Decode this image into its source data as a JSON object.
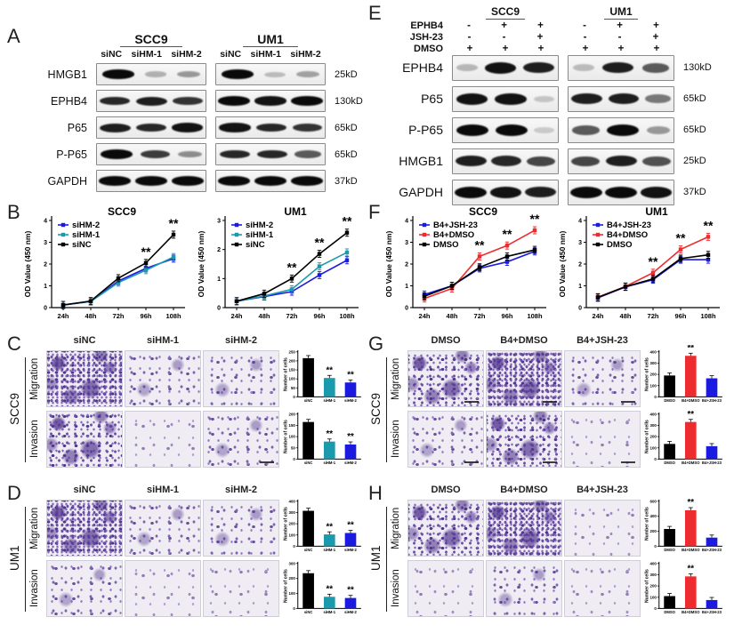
{
  "sig_marker": "**",
  "colors": {
    "blue": "#1a1ae0",
    "teal": "#1b9aad",
    "red": "#ee2b2e",
    "black": "#000000",
    "stain_purple": "#6a4ea3"
  },
  "panels": {
    "A": {
      "letter": "A",
      "groups": [
        "SCC9",
        "UM1"
      ],
      "lanes": [
        "siNC",
        "siHM-1",
        "siHM-2",
        "siNC",
        "siHM-1",
        "siHM-2"
      ],
      "rows": [
        {
          "label": "HMGB1",
          "kd": "25kD",
          "g1": [
            1,
            0.18,
            0.3
          ],
          "g2": [
            1,
            0.12,
            0.25
          ]
        },
        {
          "label": "EPHB4",
          "kd": "130kD",
          "g1": [
            0.85,
            0.9,
            0.8
          ],
          "g2": [
            1,
            0.95,
            1
          ]
        },
        {
          "label": "P65",
          "kd": "65kD",
          "g1": [
            0.9,
            0.85,
            0.95
          ],
          "g2": [
            0.95,
            0.85,
            0.8
          ]
        },
        {
          "label": "P-P65",
          "kd": "65kD",
          "g1": [
            1,
            0.75,
            0.35
          ],
          "g2": [
            0.85,
            0.85,
            0.6
          ]
        },
        {
          "label": "GAPDH",
          "kd": "37kD",
          "g1": [
            1,
            1,
            1
          ],
          "g2": [
            1,
            1,
            1
          ]
        }
      ]
    },
    "E": {
      "letter": "E",
      "groups": [
        "SCC9",
        "UM1"
      ],
      "treatments": [
        {
          "label": "EPHB4",
          "g1": [
            "-",
            "+",
            "+"
          ],
          "g2": [
            "-",
            "+",
            "+"
          ]
        },
        {
          "label": "JSH-23",
          "g1": [
            "-",
            "-",
            "+"
          ],
          "g2": [
            "-",
            "-",
            "+"
          ]
        },
        {
          "label": "DMSO",
          "g1": [
            "+",
            "+",
            "+"
          ],
          "g2": [
            "+",
            "+",
            "+"
          ]
        }
      ],
      "rows": [
        {
          "label": "EPHB4",
          "kd": "130kD",
          "g1": [
            0.15,
            0.95,
            0.9
          ],
          "g2": [
            0.12,
            0.9,
            0.6
          ]
        },
        {
          "label": "P65",
          "kd": "65kD",
          "g1": [
            0.95,
            0.95,
            0.08
          ],
          "g2": [
            0.9,
            0.9,
            0.45
          ]
        },
        {
          "label": "P-P65",
          "kd": "65kD",
          "g1": [
            1,
            1,
            0.06
          ],
          "g2": [
            0.6,
            1,
            0.3
          ]
        },
        {
          "label": "HMGB1",
          "kd": "25kD",
          "g1": [
            0.9,
            0.85,
            0.7
          ],
          "g2": [
            0.7,
            0.9,
            0.65
          ]
        },
        {
          "label": "GAPDH",
          "kd": "37kD",
          "g1": [
            1,
            0.95,
            0.9
          ],
          "g2": [
            1,
            1,
            0.95
          ]
        }
      ]
    },
    "B": {
      "letter": "B"
    },
    "F": {
      "letter": "F"
    },
    "C": {
      "letter": "C",
      "cell_line": "SCC9",
      "columns": [
        "siNC",
        "siHM-1",
        "siHM-2"
      ],
      "rows": [
        {
          "label": "Migration",
          "chart": "C_mig",
          "images": [
            {
              "density": "vhigh"
            },
            {
              "density": "med"
            },
            {
              "density": "med"
            }
          ]
        },
        {
          "label": "Invasion",
          "chart": "C_inv",
          "images": [
            {
              "density": "high"
            },
            {
              "density": "low"
            },
            {
              "density": "med",
              "scalebar": true
            }
          ]
        }
      ]
    },
    "D": {
      "letter": "D",
      "cell_line": "UM1",
      "columns": [
        "siNC",
        "siHM-1",
        "siHM-2"
      ],
      "rows": [
        {
          "label": "Migration",
          "chart": "D_mig",
          "images": [
            {
              "density": "vhigh"
            },
            {
              "density": "med"
            },
            {
              "density": "med"
            }
          ]
        },
        {
          "label": "Invasion",
          "chart": "D_inv",
          "images": [
            {
              "density": "med"
            },
            {
              "density": "low"
            },
            {
              "density": "low"
            }
          ]
        }
      ]
    },
    "G": {
      "letter": "G",
      "cell_line": "SCC9",
      "columns": [
        "DMSO",
        "B4+DMSO",
        "B4+JSH-23"
      ],
      "rows": [
        {
          "label": "Migration",
          "chart": "G_mig",
          "images": [
            {
              "density": "high",
              "scalebar": true
            },
            {
              "density": "vhigh",
              "scalebar": true
            },
            {
              "density": "med",
              "scalebar": true
            }
          ]
        },
        {
          "label": "Invasion",
          "chart": "G_inv",
          "images": [
            {
              "density": "med",
              "scalebar": true
            },
            {
              "density": "high",
              "scalebar": true
            },
            {
              "density": "low",
              "scalebar": true
            }
          ]
        }
      ]
    },
    "H": {
      "letter": "H",
      "cell_line": "UM1",
      "columns": [
        "DMSO",
        "B4+DMSO",
        "B4+JSH-23"
      ],
      "rows": [
        {
          "label": "Migration",
          "chart": "H_mig",
          "images": [
            {
              "density": "high"
            },
            {
              "density": "vhigh"
            },
            {
              "density": "low"
            }
          ]
        },
        {
          "label": "Invasion",
          "chart": "H_inv",
          "images": [
            {
              "density": "low"
            },
            {
              "density": "med"
            },
            {
              "density": "low"
            }
          ]
        }
      ]
    }
  },
  "chart_data": [
    {
      "id": "B_SCC9",
      "type": "line",
      "title": "SCC9",
      "x": [
        "24h",
        "48h",
        "72h",
        "96h",
        "108h"
      ],
      "ylabel": "OD Value (450 nm)",
      "ylim": [
        0,
        4
      ],
      "yticks": [
        0,
        1,
        2,
        3,
        4
      ],
      "series": [
        {
          "name": "siHM-2",
          "color": "#1a1ae0",
          "values": [
            0.12,
            0.28,
            1.22,
            1.8,
            2.25
          ]
        },
        {
          "name": "siHM-1",
          "color": "#1b9aad",
          "values": [
            0.12,
            0.28,
            1.15,
            1.72,
            2.32
          ]
        },
        {
          "name": "siNC",
          "color": "#000000",
          "values": [
            0.12,
            0.3,
            1.35,
            2.05,
            3.35
          ]
        }
      ],
      "sig": [
        3,
        4
      ]
    },
    {
      "id": "B_UM1",
      "type": "line",
      "title": "UM1",
      "x": [
        "24h",
        "48h",
        "72h",
        "96h",
        "108h"
      ],
      "ylabel": "OD Value (450 nm)",
      "ylim": [
        0,
        3
      ],
      "yticks": [
        0,
        1,
        2,
        3
      ],
      "series": [
        {
          "name": "siHM-2",
          "color": "#1a1ae0",
          "values": [
            0.22,
            0.38,
            0.55,
            1.12,
            1.63
          ]
        },
        {
          "name": "siHM-1",
          "color": "#1b9aad",
          "values": [
            0.22,
            0.4,
            0.63,
            1.42,
            1.9
          ]
        },
        {
          "name": "siNC",
          "color": "#000000",
          "values": [
            0.22,
            0.48,
            1.0,
            1.85,
            2.58
          ]
        }
      ],
      "sig": [
        2,
        3,
        4
      ]
    },
    {
      "id": "F_SCC9",
      "type": "line",
      "title": "SCC9",
      "x": [
        "24h",
        "48h",
        "72h",
        "96h",
        "108h"
      ],
      "ylabel": "OD Value (450 nm)",
      "ylim": [
        0,
        4
      ],
      "yticks": [
        0,
        1,
        2,
        3,
        4
      ],
      "series": [
        {
          "name": "B4+JSH-23",
          "color": "#1a1ae0",
          "values": [
            0.6,
            1.0,
            1.8,
            2.1,
            2.58
          ]
        },
        {
          "name": "B4+DMSO",
          "color": "#ee2b2e",
          "values": [
            0.42,
            0.88,
            2.35,
            2.85,
            3.55
          ]
        },
        {
          "name": "DMSO",
          "color": "#000000",
          "values": [
            0.52,
            1.0,
            1.85,
            2.35,
            2.65
          ]
        }
      ],
      "sig": [
        2,
        3,
        4
      ]
    },
    {
      "id": "F_UM1",
      "type": "line",
      "title": "UM1",
      "x": [
        "24h",
        "48h",
        "72h",
        "96h",
        "108h"
      ],
      "ylabel": "OD Value (450 nm)",
      "ylim": [
        0,
        4
      ],
      "yticks": [
        0,
        1,
        2,
        3,
        4
      ],
      "series": [
        {
          "name": "B4+JSH-23",
          "color": "#1a1ae0",
          "values": [
            0.45,
            0.95,
            1.28,
            2.2,
            2.2
          ]
        },
        {
          "name": "B4+DMSO",
          "color": "#ee2b2e",
          "values": [
            0.48,
            0.97,
            1.6,
            2.67,
            3.25
          ]
        },
        {
          "name": "DMSO",
          "color": "#000000",
          "values": [
            0.47,
            0.96,
            1.32,
            2.25,
            2.42
          ]
        }
      ],
      "sig": [
        2,
        3,
        4
      ]
    },
    {
      "id": "C_mig",
      "type": "bar",
      "ylabel": "Number of cells",
      "categories": [
        "siNC",
        "siHM-1",
        "siHM-2"
      ],
      "values": [
        215,
        105,
        80
      ],
      "colors": [
        "#000000",
        "#1b9aad",
        "#1a1ae0"
      ],
      "ylim": [
        0,
        250
      ],
      "yticks": [
        0,
        50,
        100,
        150,
        200,
        250
      ],
      "sig": [
        1,
        2
      ]
    },
    {
      "id": "C_inv",
      "type": "bar",
      "ylabel": "Number of cells",
      "categories": [
        "siNC",
        "siHM-1",
        "siHM-2"
      ],
      "values": [
        165,
        78,
        65
      ],
      "colors": [
        "#000000",
        "#1b9aad",
        "#1a1ae0"
      ],
      "ylim": [
        0,
        200
      ],
      "yticks": [
        0,
        50,
        100,
        150,
        200
      ],
      "sig": [
        1,
        2
      ]
    },
    {
      "id": "D_mig",
      "type": "bar",
      "ylabel": "Number of cells",
      "categories": [
        "siNC",
        "siHM-1",
        "siHM-2"
      ],
      "values": [
        315,
        105,
        118
      ],
      "colors": [
        "#000000",
        "#1b9aad",
        "#1a1ae0"
      ],
      "ylim": [
        0,
        400
      ],
      "yticks": [
        0,
        100,
        200,
        300,
        400
      ],
      "sig": [
        1,
        2
      ]
    },
    {
      "id": "D_inv",
      "type": "bar",
      "ylabel": "Number of cells",
      "categories": [
        "siNC",
        "siHM-1",
        "siHM-2"
      ],
      "values": [
        235,
        78,
        70
      ],
      "colors": [
        "#000000",
        "#1b9aad",
        "#1a1ae0"
      ],
      "ylim": [
        0,
        300
      ],
      "yticks": [
        0,
        100,
        200,
        300
      ],
      "sig": [
        1,
        2
      ]
    },
    {
      "id": "G_mig",
      "type": "bar",
      "ylabel": "Number of cells",
      "categories": [
        "DMSO",
        "B4+DMSO",
        "B4+JSH-23"
      ],
      "values": [
        190,
        365,
        165
      ],
      "colors": [
        "#000000",
        "#ee2b2e",
        "#1a1ae0"
      ],
      "ylim": [
        0,
        400
      ],
      "yticks": [
        0,
        100,
        200,
        300,
        400
      ],
      "sig": [
        1
      ]
    },
    {
      "id": "G_inv",
      "type": "bar",
      "ylabel": "Number of cells",
      "categories": [
        "DMSO",
        "B4+DMSO",
        "B4+JSH-23"
      ],
      "values": [
        135,
        330,
        115
      ],
      "colors": [
        "#000000",
        "#ee2b2e",
        "#1a1ae0"
      ],
      "ylim": [
        0,
        400
      ],
      "yticks": [
        0,
        100,
        200,
        300,
        400
      ],
      "sig": [
        1
      ]
    },
    {
      "id": "H_mig",
      "type": "bar",
      "ylabel": "Number of cells",
      "categories": [
        "DMSO",
        "B4+DMSO",
        "B4+JSH-23"
      ],
      "values": [
        230,
        480,
        115
      ],
      "colors": [
        "#000000",
        "#ee2b2e",
        "#1a1ae0"
      ],
      "ylim": [
        0,
        600
      ],
      "yticks": [
        0,
        200,
        400,
        600
      ],
      "sig": [
        1
      ]
    },
    {
      "id": "H_inv",
      "type": "bar",
      "ylabel": "Number of cells",
      "categories": [
        "DMSO",
        "B4+DMSO",
        "B4+JSH-23"
      ],
      "values": [
        110,
        285,
        75
      ],
      "colors": [
        "#000000",
        "#ee2b2e",
        "#1a1ae0"
      ],
      "ylim": [
        0,
        400
      ],
      "yticks": [
        0,
        100,
        200,
        300,
        400
      ],
      "sig": [
        1
      ]
    }
  ]
}
